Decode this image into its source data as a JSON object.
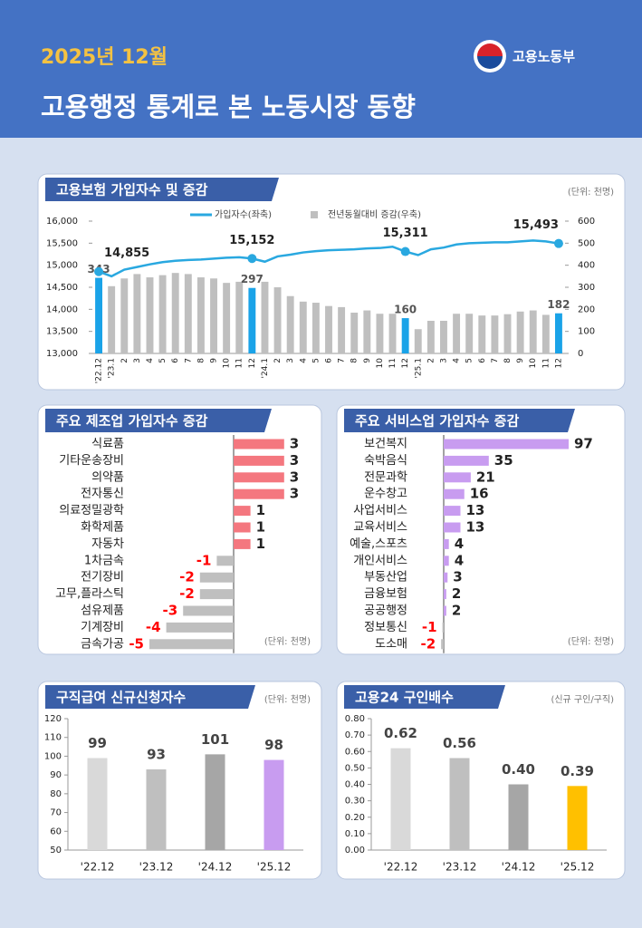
{
  "header": {
    "date": "2025년 12월",
    "title": "고용행정 통계로 본 노동시장 동향",
    "logo": "고용노동부"
  },
  "chart_data": [
    {
      "type": "combo",
      "title": "고용보험 가입자수 및 증감",
      "unit": "(단위: 천명)",
      "categories": [
        "'22.12",
        "'23.1",
        "2",
        "3",
        "4",
        "5",
        "6",
        "7",
        "8",
        "9",
        "10",
        "11",
        "12",
        "'24.1",
        "2",
        "3",
        "4",
        "5",
        "6",
        "7",
        "8",
        "9",
        "10",
        "11",
        "12",
        "'25.1",
        "2",
        "3",
        "4",
        "5",
        "6",
        "7",
        "8",
        "9",
        "10",
        "11",
        "12"
      ],
      "series": [
        {
          "name": "가입자수(좌축)",
          "type": "line",
          "color": "#29a8e0",
          "values": [
            14855,
            14750,
            14900,
            14960,
            15020,
            15070,
            15100,
            15120,
            15130,
            15150,
            15170,
            15180,
            15152,
            15080,
            15200,
            15240,
            15290,
            15320,
            15340,
            15350,
            15360,
            15380,
            15390,
            15420,
            15311,
            15230,
            15360,
            15400,
            15470,
            15500,
            15510,
            15520,
            15520,
            15540,
            15560,
            15540,
            15493
          ],
          "value_labels": [
            "14,855",
            null,
            null,
            null,
            null,
            null,
            null,
            null,
            null,
            null,
            null,
            null,
            "15,152",
            null,
            null,
            null,
            null,
            null,
            null,
            null,
            null,
            null,
            null,
            null,
            "15,311",
            null,
            null,
            null,
            null,
            null,
            null,
            null,
            null,
            null,
            null,
            null,
            "15,493"
          ]
        },
        {
          "name": "전년동월대비 증감(우축)",
          "type": "bar",
          "axis": "y2",
          "color": "#bfbfbf",
          "highlight_color": "#1aa3e8",
          "values": [
            343,
            305,
            340,
            360,
            345,
            355,
            365,
            360,
            345,
            340,
            320,
            325,
            297,
            325,
            300,
            260,
            235,
            230,
            215,
            210,
            185,
            195,
            180,
            180,
            160,
            110,
            148,
            148,
            180,
            180,
            172,
            172,
            178,
            190,
            195,
            175,
            182
          ],
          "value_labels": [
            "343",
            null,
            null,
            null,
            null,
            null,
            null,
            null,
            null,
            null,
            null,
            null,
            "297",
            null,
            null,
            null,
            null,
            null,
            null,
            null,
            null,
            null,
            null,
            null,
            "160",
            null,
            null,
            null,
            null,
            null,
            null,
            null,
            null,
            null,
            null,
            null,
            "182"
          ]
        }
      ],
      "ylim": [
        13000,
        16000
      ],
      "yticks": [
        {
          "value": 13000,
          "label": "13,000"
        },
        {
          "value": 13500,
          "label": "13,500"
        },
        {
          "value": 14000,
          "label": "14,000"
        },
        {
          "value": 14500,
          "label": "14,500"
        },
        {
          "value": 15000,
          "label": "15,000"
        },
        {
          "value": 15500,
          "label": "15,500"
        },
        {
          "value": 16000,
          "label": "16,000"
        }
      ],
      "y2lim": [
        0,
        600
      ],
      "y2ticks": [
        0,
        100,
        200,
        300,
        400,
        500,
        600
      ]
    },
    {
      "type": "hbar",
      "title": "주요 제조업 가입자수 증감",
      "unit": "(단위: 천명)",
      "categories": [
        "식료품",
        "기타운송장비",
        "의약품",
        "전자통신",
        "의료정밀광학",
        "화학제품",
        "자동차",
        "1차금속",
        "전기장비",
        "고무,플라스틱",
        "섬유제품",
        "기계장비",
        "금속가공"
      ],
      "values": [
        3,
        3,
        3,
        3,
        1,
        1,
        1,
        -1,
        -2,
        -2,
        -3,
        -4,
        -5
      ],
      "color": "#f4777f",
      "neg_color": "#bfbfbf",
      "neg_label_color": "#ff0000"
    },
    {
      "type": "hbar",
      "title": "주요 서비스업 가입자수 증감",
      "unit": "(단위: 천명)",
      "categories": [
        "보건복지",
        "숙박음식",
        "전문과학",
        "운수창고",
        "사업서비스",
        "교육서비스",
        "예술,스포츠",
        "개인서비스",
        "부동산업",
        "금융보험",
        "공공행정",
        "정보통신",
        "도소매"
      ],
      "values": [
        97,
        35,
        21,
        16,
        13,
        13,
        4,
        4,
        3,
        2,
        2,
        -1,
        -2
      ],
      "color": "#c89cf0",
      "neg_color": "#bfbfbf",
      "neg_label_color": "#ff0000"
    },
    {
      "type": "bar",
      "title": "구직급여 신규신청자수",
      "unit": "(단위: 천명)",
      "categories": [
        "'22.12",
        "'23.12",
        "'24.12",
        "'25.12"
      ],
      "values": [
        99,
        93,
        101,
        98
      ],
      "colors": [
        "#d9d9d9",
        "#bfbfbf",
        "#a6a6a6",
        "#c89cf0"
      ],
      "ylim": [
        50,
        120
      ],
      "yticks": [
        50,
        60,
        70,
        80,
        90,
        100,
        110,
        120
      ]
    },
    {
      "type": "bar",
      "title": "고용24 구인배수",
      "unit": "(신규 구인/구직)",
      "categories": [
        "'22.12",
        "'23.12",
        "'24.12",
        "'25.12"
      ],
      "values": [
        0.62,
        0.56,
        0.4,
        0.39
      ],
      "value_labels": [
        "0.62",
        "0.56",
        "0.40",
        "0.39"
      ],
      "colors": [
        "#d9d9d9",
        "#bfbfbf",
        "#a6a6a6",
        "#ffc000"
      ],
      "ylim": [
        0,
        0.8
      ],
      "yticks": [
        {
          "value": 0,
          "label": "0.00"
        },
        {
          "value": 0.1,
          "label": "0.10"
        },
        {
          "value": 0.2,
          "label": "0.20"
        },
        {
          "value": 0.3,
          "label": "0.30"
        },
        {
          "value": 0.4,
          "label": "0.40"
        },
        {
          "value": 0.5,
          "label": "0.50"
        },
        {
          "value": 0.6,
          "label": "0.60"
        },
        {
          "value": 0.7,
          "label": "0.70"
        },
        {
          "value": 0.8,
          "label": "0.80"
        }
      ]
    }
  ]
}
